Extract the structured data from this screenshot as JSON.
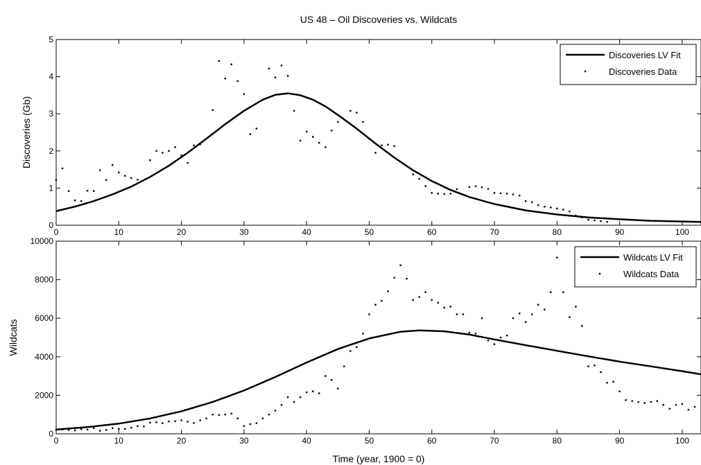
{
  "figure": {
    "title": "US 48 – Oil Discoveries vs. Wildcats",
    "xlabel": "Time (year, 1900 = 0)"
  },
  "chart_data": [
    {
      "type": "line",
      "title": "US 48 – Oil Discoveries vs. Wildcats",
      "xlabel": "",
      "ylabel": "Discoveries (Gb)",
      "xlim": [
        0,
        103
      ],
      "ylim": [
        0,
        5
      ],
      "xticks": [
        0,
        10,
        20,
        30,
        40,
        50,
        60,
        70,
        80,
        90,
        100
      ],
      "yticks": [
        0,
        1,
        2,
        3,
        4,
        5
      ],
      "grid": false,
      "legend": "top-right",
      "series": [
        {
          "name": "Discoveries LV Fit",
          "style": "line",
          "x": [
            0,
            3,
            6,
            9,
            12,
            15,
            18,
            21,
            24,
            27,
            30,
            33,
            35,
            37,
            39,
            41,
            43,
            45,
            48,
            51,
            54,
            57,
            60,
            63,
            66,
            70,
            75,
            80,
            85,
            90,
            95,
            100,
            103
          ],
          "values": [
            0.38,
            0.5,
            0.65,
            0.83,
            1.04,
            1.3,
            1.6,
            1.95,
            2.33,
            2.72,
            3.08,
            3.38,
            3.51,
            3.55,
            3.5,
            3.38,
            3.2,
            2.97,
            2.6,
            2.2,
            1.82,
            1.48,
            1.19,
            0.95,
            0.76,
            0.57,
            0.4,
            0.29,
            0.21,
            0.16,
            0.12,
            0.1,
            0.09
          ]
        },
        {
          "name": "Discoveries Data",
          "style": "points",
          "x": [
            0,
            1,
            2,
            3,
            4,
            5,
            6,
            7,
            8,
            9,
            10,
            11,
            12,
            13,
            15,
            16,
            17,
            18,
            19,
            20,
            21,
            22,
            23,
            25,
            26,
            27,
            28,
            29,
            30,
            31,
            32,
            33,
            34,
            35,
            36,
            37,
            38,
            39,
            40,
            41,
            42,
            43,
            44,
            45,
            47,
            48,
            49,
            50,
            51,
            52,
            53,
            54,
            57,
            58,
            59,
            60,
            61,
            62,
            63,
            64,
            66,
            67,
            68,
            69,
            70,
            71,
            72,
            73,
            74,
            75,
            76,
            77,
            78,
            79,
            80,
            81,
            82,
            83,
            84,
            85,
            86,
            87,
            88
          ],
          "values": [
            1.22,
            1.53,
            0.92,
            0.67,
            0.65,
            0.93,
            0.92,
            1.48,
            1.22,
            1.62,
            1.42,
            1.33,
            1.27,
            1.23,
            1.75,
            2.0,
            1.95,
            2.0,
            2.1,
            1.88,
            1.68,
            2.15,
            2.18,
            3.1,
            4.42,
            3.95,
            4.33,
            3.88,
            3.53,
            2.45,
            2.6,
            3.38,
            4.22,
            3.98,
            4.3,
            4.02,
            3.08,
            2.28,
            2.52,
            2.38,
            2.22,
            2.1,
            2.55,
            2.78,
            3.08,
            3.03,
            2.78,
            2.33,
            1.95,
            2.15,
            2.17,
            2.13,
            1.37,
            1.25,
            1.05,
            0.87,
            0.85,
            0.84,
            0.85,
            0.97,
            1.03,
            1.05,
            1.02,
            0.98,
            0.87,
            0.86,
            0.85,
            0.83,
            0.8,
            0.65,
            0.62,
            0.54,
            0.5,
            0.48,
            0.45,
            0.42,
            0.37,
            0.26,
            0.21,
            0.15,
            0.13,
            0.11,
            0.09
          ]
        }
      ]
    },
    {
      "type": "line",
      "title": "",
      "xlabel": "Time (year, 1900 = 0)",
      "ylabel": "Wildcats",
      "xlim": [
        0,
        103
      ],
      "ylim": [
        0,
        10000
      ],
      "xticks": [
        0,
        10,
        20,
        30,
        40,
        50,
        60,
        70,
        80,
        90,
        100
      ],
      "yticks": [
        0,
        2000,
        4000,
        6000,
        8000,
        10000
      ],
      "grid": false,
      "legend": "top-right",
      "series": [
        {
          "name": "Wildcats LV Fit",
          "style": "line",
          "x": [
            0,
            5,
            10,
            15,
            20,
            25,
            30,
            35,
            40,
            45,
            50,
            55,
            58,
            62,
            66,
            70,
            75,
            80,
            85,
            90,
            95,
            100,
            103
          ],
          "values": [
            220,
            350,
            530,
            800,
            1170,
            1650,
            2250,
            2950,
            3700,
            4400,
            4950,
            5300,
            5370,
            5320,
            5150,
            4900,
            4600,
            4310,
            4020,
            3750,
            3500,
            3250,
            3090
          ]
        },
        {
          "name": "Wildcats Data",
          "style": "points",
          "x": [
            0,
            1,
            2,
            3,
            4,
            5,
            6,
            7,
            8,
            9,
            10,
            11,
            12,
            13,
            14,
            15,
            16,
            17,
            18,
            19,
            20,
            21,
            22,
            23,
            24,
            25,
            26,
            27,
            28,
            29,
            30,
            31,
            32,
            33,
            34,
            35,
            36,
            37,
            38,
            39,
            40,
            41,
            42,
            43,
            44,
            45,
            46,
            47,
            48,
            49,
            50,
            51,
            52,
            53,
            54,
            55,
            56,
            57,
            58,
            59,
            60,
            61,
            62,
            63,
            64,
            65,
            66,
            67,
            68,
            69,
            70,
            71,
            72,
            73,
            74,
            75,
            76,
            77,
            78,
            79,
            80,
            81,
            82,
            83,
            84,
            85,
            86,
            87,
            88,
            89,
            90,
            91,
            92,
            93,
            94,
            95,
            96,
            97,
            98,
            99,
            100,
            101,
            102
          ],
          "values": [
            200,
            220,
            200,
            180,
            240,
            220,
            300,
            160,
            200,
            300,
            260,
            250,
            320,
            400,
            380,
            580,
            600,
            550,
            640,
            650,
            700,
            630,
            560,
            700,
            800,
            1000,
            980,
            1000,
            1050,
            800,
            400,
            500,
            550,
            800,
            1000,
            1200,
            1500,
            1900,
            1650,
            1900,
            2150,
            2200,
            2100,
            3000,
            2800,
            2350,
            3500,
            4300,
            4500,
            5200,
            6200,
            6700,
            6900,
            7400,
            8100,
            8750,
            8050,
            6950,
            7100,
            7350,
            6950,
            6800,
            6550,
            6600,
            6200,
            6200,
            5250,
            5200,
            6000,
            4850,
            4650,
            5000,
            5100,
            6000,
            6250,
            5800,
            6200,
            6700,
            6450,
            7350,
            9150,
            7350,
            6050,
            6600,
            5600,
            3500,
            3550,
            3200,
            2650,
            2700,
            2200,
            1750,
            1700,
            1650,
            1600,
            1650,
            1700,
            1500,
            1300,
            1500,
            1550,
            1250,
            1400
          ]
        }
      ]
    }
  ]
}
